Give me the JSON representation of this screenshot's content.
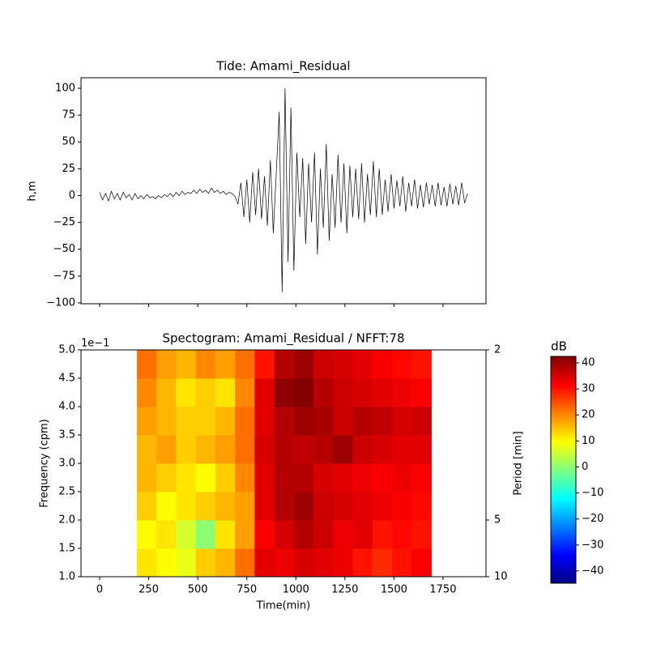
{
  "chart_data": [
    {
      "type": "line",
      "title": "Tide: Amami_Residual",
      "ylabel": "h,m",
      "color": "#000000",
      "x": [
        0,
        15,
        30,
        45,
        60,
        75,
        90,
        105,
        120,
        135,
        150,
        165,
        180,
        195,
        210,
        225,
        240,
        255,
        270,
        285,
        300,
        315,
        330,
        345,
        360,
        375,
        390,
        405,
        420,
        435,
        450,
        465,
        480,
        495,
        510,
        525,
        540,
        555,
        570,
        585,
        600,
        615,
        630,
        645,
        660,
        675,
        690,
        705,
        720,
        735,
        750,
        765,
        780,
        795,
        810,
        825,
        840,
        855,
        870,
        885,
        900,
        915,
        930,
        945,
        960,
        975,
        990,
        1005,
        1020,
        1035,
        1050,
        1065,
        1080,
        1095,
        1110,
        1125,
        1140,
        1155,
        1170,
        1185,
        1200,
        1215,
        1230,
        1245,
        1260,
        1275,
        1290,
        1305,
        1320,
        1335,
        1350,
        1365,
        1380,
        1395,
        1410,
        1425,
        1440,
        1455,
        1470,
        1485,
        1500,
        1515,
        1530,
        1545,
        1560,
        1575,
        1590,
        1605,
        1620,
        1635,
        1650,
        1665,
        1680,
        1695,
        1710,
        1725,
        1740,
        1755,
        1770,
        1785,
        1800,
        1815,
        1830,
        1845,
        1860,
        1875
      ],
      "values": [
        3,
        -4,
        2,
        -5,
        4,
        -3,
        2,
        -4,
        3,
        -2,
        1,
        -4,
        2,
        -3,
        0,
        -3,
        1,
        -2,
        -1,
        -3,
        0,
        -2,
        1,
        -1,
        2,
        -1,
        3,
        0,
        4,
        1,
        3,
        2,
        5,
        2,
        6,
        3,
        5,
        2,
        7,
        3,
        5,
        2,
        4,
        1,
        3,
        2,
        -1,
        -8,
        12,
        -20,
        15,
        -25,
        22,
        -18,
        25,
        -22,
        18,
        -28,
        33,
        -35,
        20,
        78,
        -90,
        100,
        -62,
        82,
        -70,
        40,
        -20,
        35,
        -45,
        30,
        -25,
        40,
        -55,
        25,
        -30,
        48,
        -42,
        20,
        -30,
        38,
        -25,
        30,
        -35,
        28,
        -20,
        25,
        -22,
        30,
        -25,
        20,
        -18,
        32,
        -20,
        25,
        -18,
        15,
        -15,
        20,
        -12,
        14,
        -10,
        18,
        -15,
        12,
        -10,
        15,
        -12,
        10,
        -11,
        12,
        -8,
        10,
        -10,
        12,
        -9,
        8,
        -10,
        11,
        -8,
        9,
        -9,
        12,
        -7,
        2
      ],
      "xlim": [
        -95,
        1969
      ],
      "xticks": [
        0,
        250,
        500,
        750,
        1000,
        1250,
        1500,
        1750
      ],
      "show_xtick_labels": false,
      "ylim": [
        -100.8,
        109.8
      ],
      "yticks": [
        {
          "value": -100,
          "label": "−100"
        },
        {
          "value": -75,
          "label": "−75"
        },
        {
          "value": -50,
          "label": "−50"
        },
        {
          "value": -25,
          "label": "−25"
        },
        0,
        25,
        50,
        75,
        100
      ]
    },
    {
      "type": "heatmap",
      "title": "Spectogram: Amami_Residual / NFFT:78",
      "xlabel": "Time(min)",
      "ylabel": "Frequency (cpm)",
      "y2label": "Period [min]",
      "y_offset_label": "1e−1",
      "y_offset_exponent": -1,
      "colormap": "jet",
      "x_edges": [
        190,
        290,
        390,
        490,
        590,
        690,
        790,
        890,
        990,
        1090,
        1190,
        1290,
        1390,
        1490,
        1590,
        1690
      ],
      "y_edges": [
        1.0,
        1.5,
        2.0,
        2.5,
        3.0,
        3.5,
        4.0,
        4.5,
        5.0
      ],
      "z": [
        [
          12,
          10,
          8,
          14,
          16,
          22,
          34,
          33,
          35,
          34,
          33,
          30,
          28,
          30,
          32
        ],
        [
          10,
          12,
          6,
          0,
          12,
          18,
          32,
          35,
          38,
          36,
          33,
          34,
          30,
          31,
          30
        ],
        [
          14,
          10,
          12,
          14,
          16,
          18,
          34,
          38,
          40,
          36,
          35,
          34,
          33,
          32,
          31
        ],
        [
          16,
          14,
          12,
          10,
          14,
          20,
          34,
          38,
          38,
          35,
          34,
          33,
          32,
          33,
          32
        ],
        [
          16,
          18,
          14,
          16,
          18,
          22,
          35,
          38,
          37,
          38,
          40,
          36,
          35,
          34,
          34
        ],
        [
          18,
          16,
          14,
          14,
          16,
          22,
          34,
          38,
          40,
          39,
          36,
          38,
          37,
          35,
          36
        ],
        [
          20,
          16,
          12,
          14,
          12,
          20,
          34,
          41,
          42,
          38,
          36,
          35,
          34,
          33,
          32
        ],
        [
          22,
          18,
          16,
          20,
          18,
          22,
          30,
          38,
          40,
          36,
          35,
          34,
          32,
          31,
          30
        ]
      ],
      "xlim": [
        -95,
        1969
      ],
      "xticks": [
        0,
        250,
        500,
        750,
        1000,
        1250,
        1500,
        1750
      ],
      "ylim": [
        1.0,
        5.0
      ],
      "yticks": [
        {
          "value": 1.0,
          "label": "1.0"
        },
        {
          "value": 1.5,
          "label": "1.5"
        },
        {
          "value": 2.0,
          "label": "2.0"
        },
        {
          "value": 2.5,
          "label": "2.5"
        },
        {
          "value": 3.0,
          "label": "3.0"
        },
        {
          "value": 3.5,
          "label": "3.5"
        },
        {
          "value": 4.0,
          "label": "4.0"
        },
        {
          "value": 4.5,
          "label": "4.5"
        },
        {
          "value": 5.0,
          "label": "5.0"
        }
      ],
      "y2ticks": [
        2,
        5,
        10
      ],
      "y2scale": "reciprocal",
      "colorbar_label": "dB",
      "clim": [
        -44.7,
        42.5
      ],
      "colorbar_ticks": [
        {
          "value": -40,
          "label": "−40"
        },
        {
          "value": -30,
          "label": "−30"
        },
        {
          "value": -20,
          "label": "−20"
        },
        {
          "value": -10,
          "label": "−10"
        },
        0,
        10,
        20,
        30,
        40
      ]
    }
  ]
}
